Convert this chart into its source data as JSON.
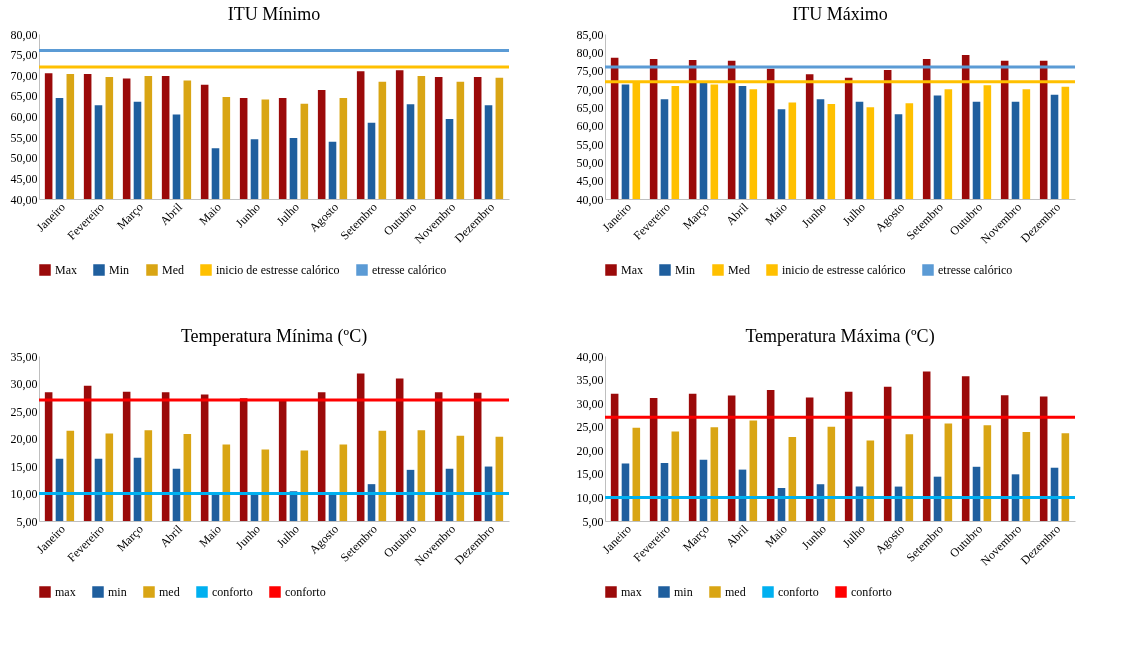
{
  "chart_data": [
    {
      "type": "bar",
      "title": "ITU Mínimo",
      "categories": [
        "Janeiro",
        "Fevereiro",
        "Março",
        "Abril",
        "Maio",
        "Junho",
        "Julho",
        "Agosto",
        "Setembro",
        "Outubro",
        "Novembro",
        "Dezembro"
      ],
      "series": [
        {
          "name": "Max",
          "color": "#9b0a0a",
          "values": [
            70.5,
            70.3,
            69.2,
            69.8,
            67.7,
            64.5,
            64.5,
            66.4,
            71.0,
            71.2,
            69.6,
            69.6
          ]
        },
        {
          "name": "Min",
          "color": "#1f5f9e",
          "values": [
            64.5,
            62.7,
            63.6,
            60.5,
            52.3,
            54.5,
            54.8,
            53.9,
            58.5,
            63.0,
            59.4,
            62.7
          ]
        },
        {
          "name": "Med",
          "color": "#d9a514",
          "values": [
            70.3,
            69.6,
            69.8,
            68.7,
            64.7,
            64.1,
            63.1,
            64.5,
            68.4,
            69.8,
            68.4,
            69.4
          ]
        }
      ],
      "ref_lines": [
        {
          "axis": "y",
          "value": 72,
          "label": "inicio de estresse calórico",
          "color": "#ffc000"
        },
        {
          "axis": "y",
          "value": 76,
          "label": "etresse calórico",
          "color": "#5b9bd5"
        }
      ],
      "ylim": [
        40,
        80
      ],
      "yticks": [
        {
          "value": 40,
          "label": "40,00"
        },
        {
          "value": 45,
          "label": "45,00"
        },
        {
          "value": 50,
          "label": "50,00"
        },
        {
          "value": 55,
          "label": "55,00"
        },
        {
          "value": 60,
          "label": "60,00"
        },
        {
          "value": 65,
          "label": "65,00"
        },
        {
          "value": 70,
          "label": "70,00"
        },
        {
          "value": 75,
          "label": "75,00"
        },
        {
          "value": 80,
          "label": "80,00"
        }
      ],
      "grid": false,
      "legend": "bottom"
    },
    {
      "type": "bar",
      "title": "ITU Máximo",
      "categories": [
        "Janeiro",
        "Fevereiro",
        "Março",
        "Abril",
        "Maio",
        "Junho",
        "Julho",
        "Agosto",
        "Setembro",
        "Outubro",
        "Novembro",
        "Dezembro"
      ],
      "series": [
        {
          "name": "Max",
          "color": "#9b0a0a",
          "values": [
            78.5,
            78.2,
            77.9,
            77.7,
            75.5,
            74.0,
            73.1,
            75.2,
            78.2,
            79.3,
            77.7,
            77.7
          ]
        },
        {
          "name": "Min",
          "color": "#1f5f9e",
          "values": [
            71.2,
            67.2,
            71.7,
            70.8,
            64.5,
            67.2,
            66.5,
            63.1,
            68.2,
            66.5,
            66.5,
            68.4
          ]
        },
        {
          "name": "Med",
          "color": "#ffc000",
          "values": [
            72.0,
            70.8,
            71.2,
            69.9,
            66.3,
            65.9,
            65.0,
            66.1,
            69.9,
            71.0,
            69.9,
            70.6
          ]
        }
      ],
      "ref_lines": [
        {
          "axis": "y",
          "value": 72,
          "label": "inicio de estresse calórico",
          "color": "#ffc000"
        },
        {
          "axis": "y",
          "value": 76,
          "label": "etresse calórico",
          "color": "#5b9bd5"
        }
      ],
      "ylim": [
        40,
        85
      ],
      "yticks": [
        {
          "value": 40,
          "label": "40,00"
        },
        {
          "value": 45,
          "label": "45,00"
        },
        {
          "value": 50,
          "label": "50,00"
        },
        {
          "value": 55,
          "label": "55,00"
        },
        {
          "value": 60,
          "label": "60,00"
        },
        {
          "value": 65,
          "label": "65,00"
        },
        {
          "value": 70,
          "label": "70,00"
        },
        {
          "value": 75,
          "label": "75,00"
        },
        {
          "value": 80,
          "label": "80,00"
        },
        {
          "value": 85,
          "label": "85,00"
        }
      ],
      "grid": false,
      "legend": "bottom"
    },
    {
      "type": "bar",
      "title": "Temperatura Mínima (ºC)",
      "categories": [
        "Janeiro",
        "Fevereiro",
        "Março",
        "Abril",
        "Maio",
        "Junho",
        "Julho",
        "Agosto",
        "Setembro",
        "Outubro",
        "Novembro",
        "Dezembro"
      ],
      "series": [
        {
          "name": "max",
          "color": "#9b0a0a",
          "values": [
            28.4,
            29.6,
            28.5,
            28.4,
            28.0,
            27.3,
            27.0,
            28.4,
            31.8,
            30.9,
            28.4,
            28.3
          ]
        },
        {
          "name": "min",
          "color": "#1f5f9e",
          "values": [
            16.3,
            16.3,
            16.5,
            14.5,
            10.2,
            10.2,
            10.4,
            10.2,
            11.7,
            14.3,
            14.5,
            14.9
          ]
        },
        {
          "name": "med",
          "color": "#d9a514",
          "values": [
            21.4,
            20.9,
            21.5,
            20.8,
            18.9,
            18.0,
            17.8,
            18.9,
            21.4,
            21.5,
            20.5,
            20.3
          ]
        }
      ],
      "ref_lines": [
        {
          "axis": "y",
          "value": 10,
          "label": "conforto",
          "color": "#00b0f0"
        },
        {
          "axis": "y",
          "value": 27,
          "label": "conforto",
          "color": "#ff0000"
        }
      ],
      "ylim": [
        5,
        35
      ],
      "yticks": [
        {
          "value": 5,
          "label": "5,00"
        },
        {
          "value": 10,
          "label": "10,00"
        },
        {
          "value": 15,
          "label": "15,00"
        },
        {
          "value": 20,
          "label": "20,00"
        },
        {
          "value": 25,
          "label": "25,00"
        },
        {
          "value": 30,
          "label": "30,00"
        },
        {
          "value": 35,
          "label": "35,00"
        }
      ],
      "grid": false,
      "legend": "bottom"
    },
    {
      "type": "bar",
      "title": "Temperatura Máxima (ºC)",
      "categories": [
        "Janeiro",
        "Fevereiro",
        "Março",
        "Abril",
        "Maio",
        "Junho",
        "Julho",
        "Agosto",
        "Setembro",
        "Outubro",
        "Novembro",
        "Dezembro"
      ],
      "series": [
        {
          "name": "max",
          "color": "#9b0a0a",
          "values": [
            32.0,
            31.1,
            32.0,
            31.6,
            32.8,
            31.2,
            32.4,
            33.5,
            36.7,
            35.7,
            31.7,
            31.4
          ]
        },
        {
          "name": "min",
          "color": "#1f5f9e",
          "values": [
            17.2,
            17.3,
            18.0,
            15.9,
            12.0,
            12.8,
            12.3,
            12.3,
            14.4,
            16.5,
            14.9,
            16.3
          ]
        },
        {
          "name": "med",
          "color": "#d9a514",
          "values": [
            24.8,
            24.0,
            24.9,
            26.3,
            22.8,
            25.0,
            22.1,
            23.4,
            25.7,
            25.3,
            23.9,
            23.6
          ]
        }
      ],
      "ref_lines": [
        {
          "axis": "y",
          "value": 10,
          "label": "conforto",
          "color": "#00b0f0"
        },
        {
          "axis": "y",
          "value": 27,
          "label": "conforto",
          "color": "#ff0000"
        }
      ],
      "ylim": [
        5,
        40
      ],
      "yticks": [
        {
          "value": 5,
          "label": "5,00"
        },
        {
          "value": 10,
          "label": "10,00"
        },
        {
          "value": 15,
          "label": "15,00"
        },
        {
          "value": 20,
          "label": "20,00"
        },
        {
          "value": 25,
          "label": "25,00"
        },
        {
          "value": 30,
          "label": "30,00"
        },
        {
          "value": 35,
          "label": "35,00"
        },
        {
          "value": 40,
          "label": "40,00"
        }
      ],
      "grid": false,
      "legend": "bottom"
    }
  ]
}
